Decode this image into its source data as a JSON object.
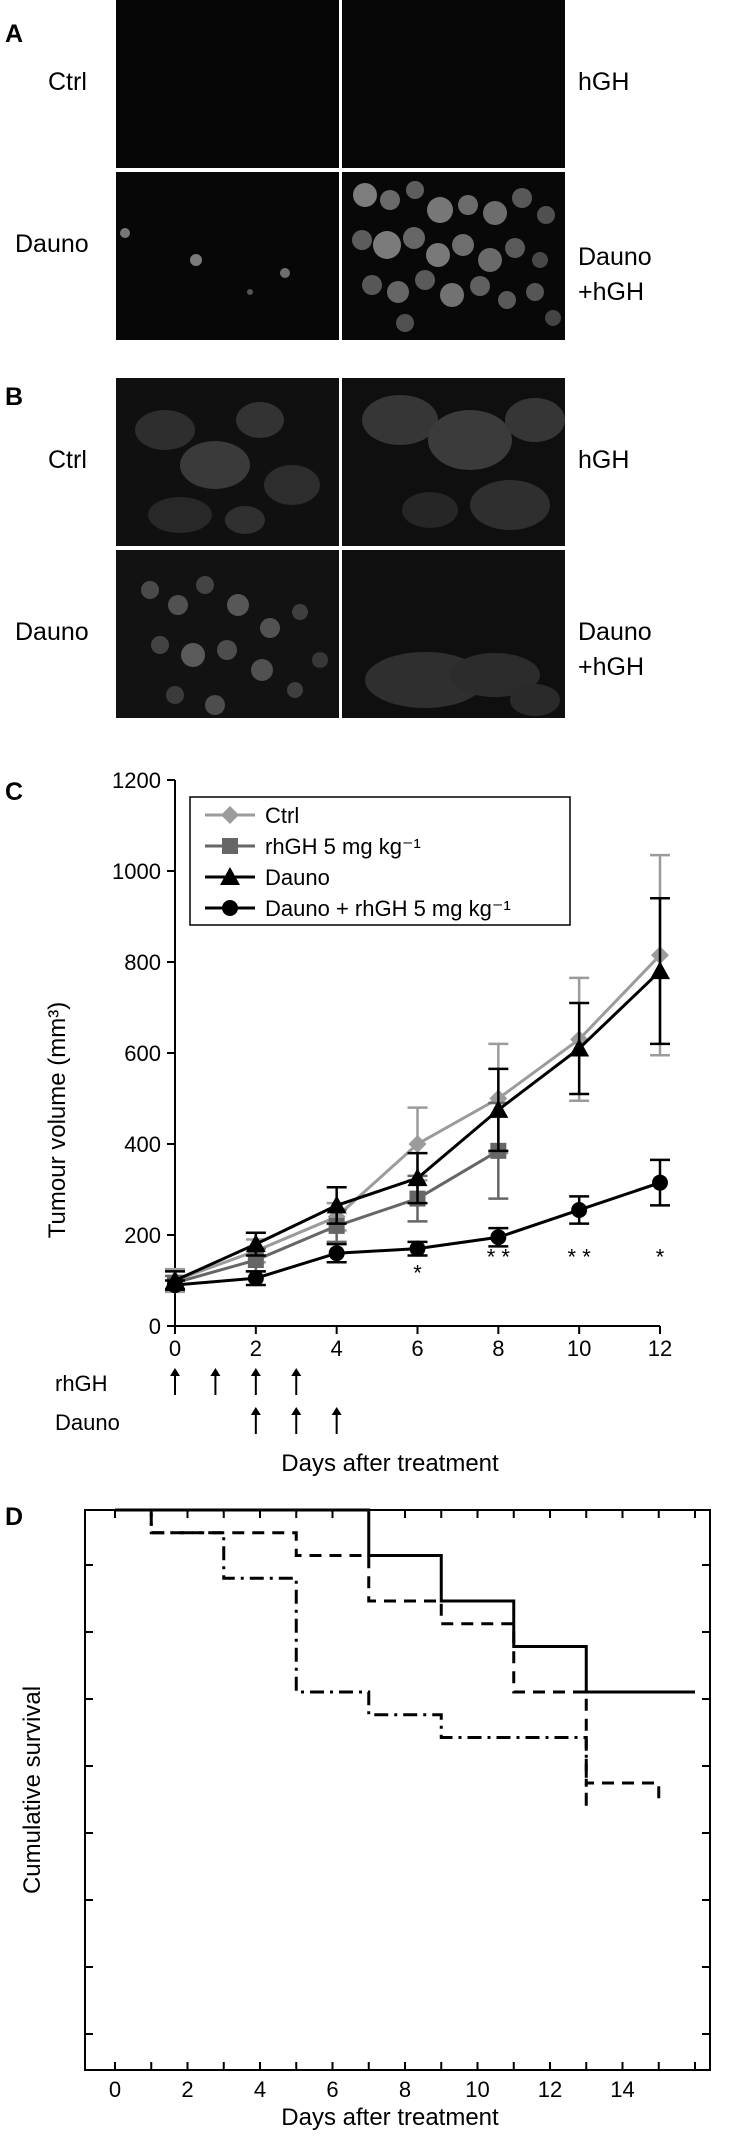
{
  "figure": {
    "panels": {
      "a": {
        "letter": "A",
        "labels": {
          "ctrl": "Ctrl",
          "hgh": "hGH",
          "dauno": "Dauno",
          "dauno_hgh_line1": "Dauno",
          "dauno_hgh_line2": "+hGH"
        }
      },
      "b": {
        "letter": "B",
        "labels": {
          "ctrl": "Ctrl",
          "hgh": "hGH",
          "dauno": "Dauno",
          "dauno_hgh_line1": "Dauno",
          "dauno_hgh_line2": "+hGH"
        }
      },
      "c": {
        "letter": "C"
      },
      "d": {
        "letter": "D"
      }
    }
  },
  "chart_data": [
    {
      "panel": "C",
      "type": "line",
      "title": "",
      "xlabel": "Days after treatment",
      "ylabel": "Tumour volume (mm³)",
      "x": [
        0,
        2,
        4,
        6,
        8,
        10,
        12
      ],
      "xlim": [
        0,
        12
      ],
      "ylim": [
        0,
        1200
      ],
      "xticks": [
        0,
        2,
        4,
        6,
        8,
        10,
        12
      ],
      "yticks": [
        0,
        200,
        400,
        600,
        800,
        1000,
        1200
      ],
      "legend_position": "top-left",
      "series": [
        {
          "name": "Ctrl",
          "marker": "diamond",
          "color": "#9b9b9b",
          "points": [
            {
              "x": 0,
              "y": 100,
              "err": 25
            },
            {
              "x": 2,
              "y": 165,
              "err": 25
            },
            {
              "x": 4,
              "y": 240,
              "err": 30
            },
            {
              "x": 6,
              "y": 400,
              "err": 80
            },
            {
              "x": 8,
              "y": 500,
              "err": 120
            },
            {
              "x": 10,
              "y": 630,
              "err": 135
            },
            {
              "x": 12,
              "y": 815,
              "err": 220
            }
          ]
        },
        {
          "name": "rhGH 5 mg kg⁻¹",
          "marker": "square",
          "color": "#666666",
          "points": [
            {
              "x": 0,
              "y": 95,
              "err": 15
            },
            {
              "x": 2,
              "y": 145,
              "err": 25
            },
            {
              "x": 4,
              "y": 220,
              "err": 35
            },
            {
              "x": 6,
              "y": 280,
              "err": 50
            },
            {
              "x": 8,
              "y": 385,
              "err": 105
            }
          ]
        },
        {
          "name": "Dauno",
          "marker": "triangle",
          "color": "#000000",
          "points": [
            {
              "x": 0,
              "y": 100,
              "err": 20
            },
            {
              "x": 2,
              "y": 180,
              "err": 25
            },
            {
              "x": 4,
              "y": 265,
              "err": 40
            },
            {
              "x": 6,
              "y": 325,
              "err": 55
            },
            {
              "x": 8,
              "y": 475,
              "err": 90
            },
            {
              "x": 10,
              "y": 610,
              "err": 100
            },
            {
              "x": 12,
              "y": 780,
              "err": 160
            }
          ]
        },
        {
          "name": "Dauno + rhGH 5 mg kg⁻¹",
          "marker": "circle",
          "color": "#000000",
          "points": [
            {
              "x": 0,
              "y": 90,
              "err": 10
            },
            {
              "x": 2,
              "y": 105,
              "err": 15
            },
            {
              "x": 4,
              "y": 160,
              "err": 20
            },
            {
              "x": 6,
              "y": 170,
              "err": 15
            },
            {
              "x": 8,
              "y": 195,
              "err": 20
            },
            {
              "x": 10,
              "y": 255,
              "err": 30
            },
            {
              "x": 12,
              "y": 315,
              "err": 50
            }
          ]
        }
      ],
      "annotations": [
        {
          "x": 6,
          "y": 100,
          "text": "*"
        },
        {
          "x": 8,
          "y": 135,
          "text": "* *"
        },
        {
          "x": 10,
          "y": 135,
          "text": "* *"
        },
        {
          "x": 12,
          "y": 135,
          "text": "*"
        }
      ],
      "dosing": {
        "rhGH_label": "rhGH",
        "rhGH_days": [
          0,
          1,
          2,
          3
        ],
        "dauno_label": "Dauno",
        "dauno_days": [
          2,
          3,
          4
        ]
      }
    },
    {
      "panel": "D",
      "type": "line",
      "title": "",
      "xlabel": "Days after treatment",
      "ylabel": "Cumulative survival",
      "xlim": [
        0,
        16
      ],
      "ylim": [
        0,
        1
      ],
      "xticks": [
        0,
        2,
        4,
        6,
        8,
        10,
        12,
        14
      ],
      "series": [
        {
          "style": "solid",
          "steps": [
            [
              0,
              1.0
            ],
            [
              7,
              1.0
            ],
            [
              7,
              0.9
            ],
            [
              9,
              0.9
            ],
            [
              9,
              0.8
            ],
            [
              11,
              0.8
            ],
            [
              11,
              0.7
            ],
            [
              13,
              0.7
            ],
            [
              13,
              0.6
            ],
            [
              16,
              0.6
            ]
          ]
        },
        {
          "style": "dashed",
          "steps": [
            [
              0,
              1.0
            ],
            [
              1,
              1.0
            ],
            [
              1,
              0.95
            ],
            [
              5,
              0.95
            ],
            [
              5,
              0.9
            ],
            [
              7,
              0.9
            ],
            [
              7,
              0.8
            ],
            [
              9,
              0.8
            ],
            [
              9,
              0.75
            ],
            [
              11,
              0.75
            ],
            [
              11,
              0.6
            ],
            [
              13,
              0.6
            ],
            [
              13,
              0.4
            ],
            [
              15,
              0.4
            ],
            [
              15,
              0.35
            ]
          ]
        },
        {
          "style": "dash-dot",
          "steps": [
            [
              0,
              1.0
            ],
            [
              1,
              1.0
            ],
            [
              1,
              0.95
            ],
            [
              3,
              0.95
            ],
            [
              3,
              0.85
            ],
            [
              5,
              0.85
            ],
            [
              5,
              0.6
            ],
            [
              7,
              0.6
            ],
            [
              7,
              0.55
            ],
            [
              9,
              0.55
            ],
            [
              9,
              0.5
            ],
            [
              13,
              0.5
            ],
            [
              13,
              0.35
            ]
          ]
        }
      ]
    }
  ]
}
